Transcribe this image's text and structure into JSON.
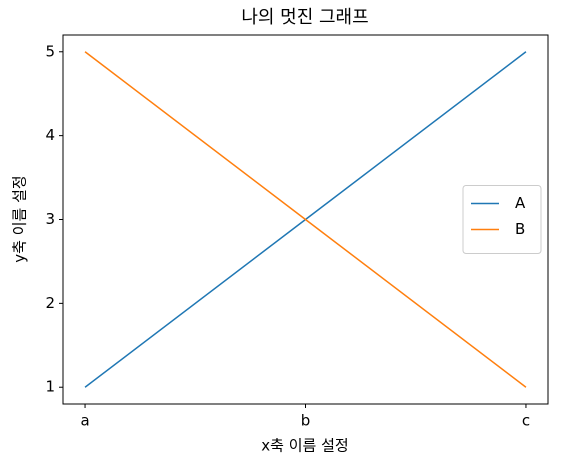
{
  "chart_data": {
    "type": "line",
    "title": "나의 멋진 그래프",
    "x_label": "x축 이름 설정",
    "y_label": "y축 이름 설정",
    "categories": [
      "a",
      "b",
      "c"
    ],
    "series": [
      {
        "name": "A",
        "color": "#1f77b4",
        "values": [
          1,
          3,
          5
        ]
      },
      {
        "name": "B",
        "color": "#ff7f0e",
        "values": [
          5,
          3,
          1
        ]
      }
    ],
    "ylim": [
      0.8,
      5.2
    ],
    "yticks": [
      1,
      2,
      3,
      4,
      5
    ],
    "legend": "right"
  }
}
